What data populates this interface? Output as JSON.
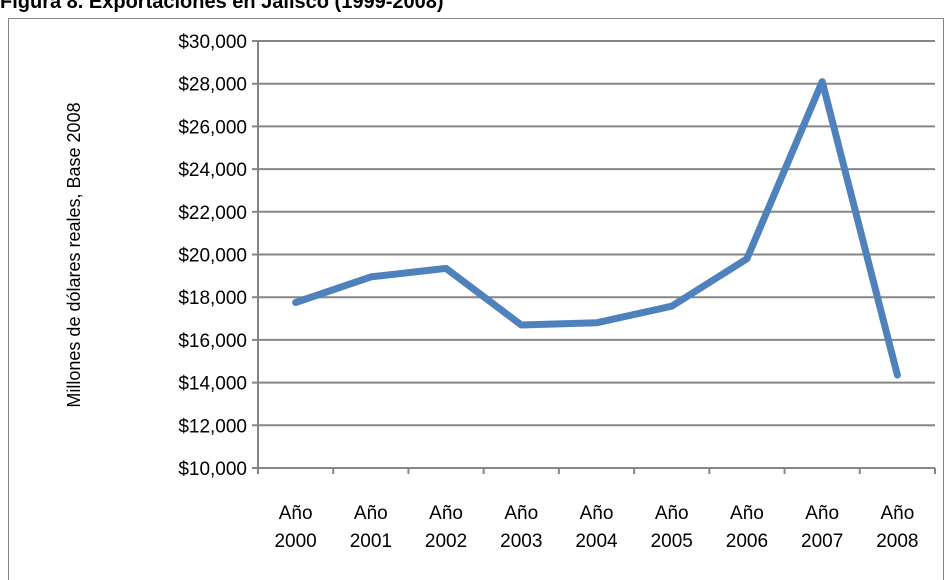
{
  "figure_title": "Figura 8. Exportaciones en Jalisco (1999-2008)",
  "chart_data": {
    "type": "line",
    "title": "",
    "xlabel": "",
    "ylabel": "Millones de dólares reales, Base  2008",
    "categories": [
      [
        "Año",
        "2000"
      ],
      [
        "Año",
        "2001"
      ],
      [
        "Año",
        "2002"
      ],
      [
        "Año",
        "2003"
      ],
      [
        "Año",
        "2004"
      ],
      [
        "Año",
        "2005"
      ],
      [
        "Año",
        "2006"
      ],
      [
        "Año",
        "2007"
      ],
      [
        "Año",
        "2008"
      ]
    ],
    "series": [
      {
        "values": [
          17750,
          18950,
          19350,
          16700,
          16800,
          17580,
          19800,
          28100,
          14350
        ],
        "color": "#4f81bd"
      }
    ],
    "ylim": [
      10000,
      30000
    ],
    "yticks": [
      10000,
      12000,
      14000,
      16000,
      18000,
      20000,
      22000,
      24000,
      26000,
      28000,
      30000
    ],
    "ytick_labels": [
      "$10,000",
      "$12,000",
      "$14,000",
      "$16,000",
      "$18,000",
      "$20,000",
      "$22,000",
      "$24,000",
      "$26,000",
      "$28,000",
      "$30,000"
    ],
    "grid": true,
    "legend": "none",
    "gridline_color": "#868686"
  }
}
